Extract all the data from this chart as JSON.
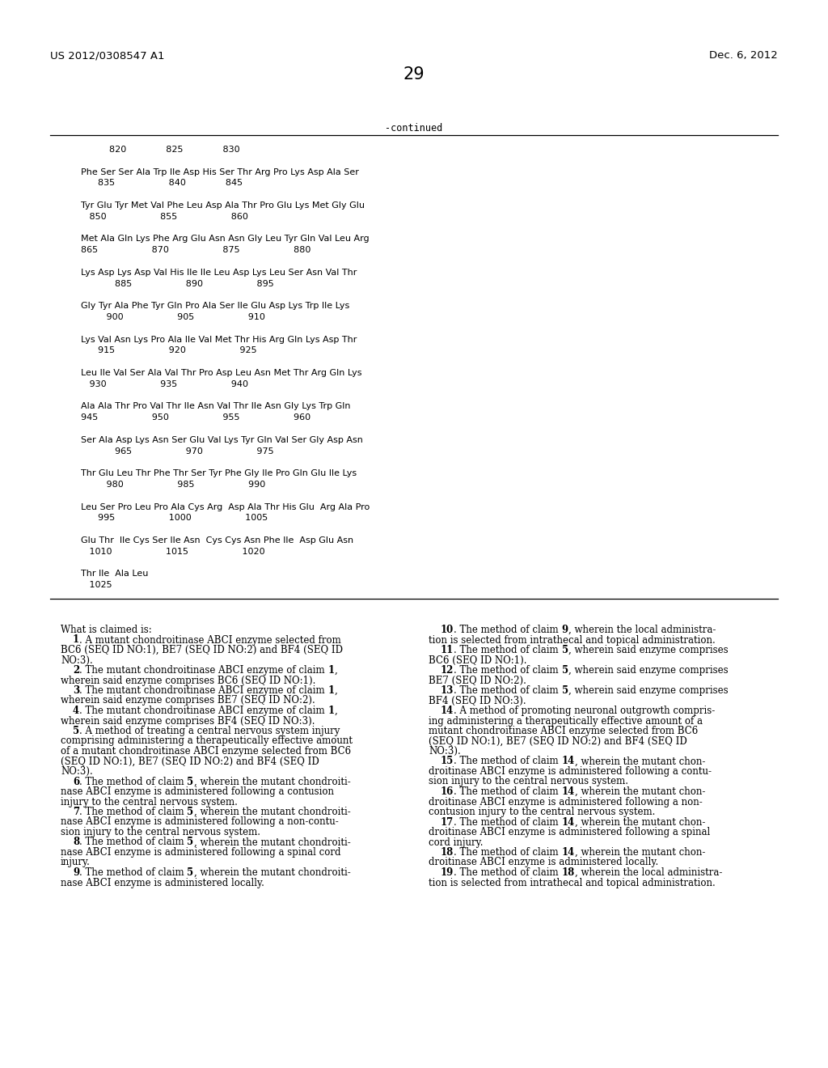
{
  "header_left": "US 2012/0308547 A1",
  "header_right": "Dec. 6, 2012",
  "page_number": "29",
  "continued_label": "-continued",
  "bg_color": "#ffffff",
  "text_color": "#000000",
  "header_fontsize": 9.5,
  "page_num_fontsize": 15,
  "seq_fontsize": 8.0,
  "claims_fontsize": 8.5,
  "seq_lines": [
    "          820              825              830",
    "",
    "Phe Ser Ser Ala Trp Ile Asp His Ser Thr Arg Pro Lys Asp Ala Ser",
    "      835                   840              845",
    "",
    "Tyr Glu Tyr Met Val Phe Leu Asp Ala Thr Pro Glu Lys Met Gly Glu",
    "   850                   855                   860",
    "",
    "Met Ala Gln Lys Phe Arg Glu Asn Asn Gly Leu Tyr Gln Val Leu Arg",
    "865                   870                   875                   880",
    "",
    "Lys Asp Lys Asp Val His Ile Ile Leu Asp Lys Leu Ser Asn Val Thr",
    "            885                   890                   895",
    "",
    "Gly Tyr Ala Phe Tyr Gln Pro Ala Ser Ile Glu Asp Lys Trp Ile Lys",
    "         900                   905                   910",
    "",
    "Lys Val Asn Lys Pro Ala Ile Val Met Thr His Arg Gln Lys Asp Thr",
    "      915                   920                   925",
    "",
    "Leu Ile Val Ser Ala Val Thr Pro Asp Leu Asn Met Thr Arg Gln Lys",
    "   930                   935                   940",
    "",
    "Ala Ala Thr Pro Val Thr Ile Asn Val Thr Ile Asn Gly Lys Trp Gln",
    "945                   950                   955                   960",
    "",
    "Ser Ala Asp Lys Asn Ser Glu Val Lys Tyr Gln Val Ser Gly Asp Asn",
    "            965                   970                   975",
    "",
    "Thr Glu Leu Thr Phe Thr Ser Tyr Phe Gly Ile Pro Gln Glu Ile Lys",
    "         980                   985                   990",
    "",
    "Leu Ser Pro Leu Pro Ala Cys Arg  Asp Ala Thr His Glu  Arg Ala Pro",
    "      995                   1000                   1005",
    "",
    "Glu Thr  Ile Cys Ser Ile Asn  Cys Cys Asn Phe Ile  Asp Glu Asn",
    "   1010                   1015                   1020",
    "",
    "Thr Ile  Ala Leu",
    "   1025"
  ],
  "left_claims_segments": [
    [
      [
        "What is claimed is:",
        "normal"
      ]
    ],
    [
      [
        "    ",
        "normal"
      ],
      [
        "1",
        "bold"
      ],
      [
        ". A mutant chondroitinase ABCI enzyme selected from",
        "normal"
      ]
    ],
    [
      [
        "BC6 (SEQ ID NO:1), BE7 (SEQ ID NO:2) and BF4 (SEQ ID",
        "normal"
      ]
    ],
    [
      [
        "NO:3).",
        "normal"
      ]
    ],
    [
      [
        "    ",
        "normal"
      ],
      [
        "2",
        "bold"
      ],
      [
        ". The mutant chondroitinase ABCI enzyme of claim ",
        "normal"
      ],
      [
        "1",
        "bold"
      ],
      [
        ",",
        "normal"
      ]
    ],
    [
      [
        "wherein said enzyme comprises BC6 (SEQ ID NO:1).",
        "normal"
      ]
    ],
    [
      [
        "    ",
        "normal"
      ],
      [
        "3",
        "bold"
      ],
      [
        ". The mutant chondroitinase ABCI enzyme of claim ",
        "normal"
      ],
      [
        "1",
        "bold"
      ],
      [
        ",",
        "normal"
      ]
    ],
    [
      [
        "wherein said enzyme comprises BE7 (SEQ ID NO:2).",
        "normal"
      ]
    ],
    [
      [
        "    ",
        "normal"
      ],
      [
        "4",
        "bold"
      ],
      [
        ". The mutant chondroitinase ABCI enzyme of claim ",
        "normal"
      ],
      [
        "1",
        "bold"
      ],
      [
        ",",
        "normal"
      ]
    ],
    [
      [
        "wherein said enzyme comprises BF4 (SEQ ID NO:3).",
        "normal"
      ]
    ],
    [
      [
        "    ",
        "normal"
      ],
      [
        "5",
        "bold"
      ],
      [
        ". A method of treating a central nervous system injury",
        "normal"
      ]
    ],
    [
      [
        "comprising administering a therapeutically effective amount",
        "normal"
      ]
    ],
    [
      [
        "of a mutant chondroitinase ABCI enzyme selected from BC6",
        "normal"
      ]
    ],
    [
      [
        "(SEQ ID NO:1), BE7 (SEQ ID NO:2) and BF4 (SEQ ID",
        "normal"
      ]
    ],
    [
      [
        "NO:3).",
        "normal"
      ]
    ],
    [
      [
        "    ",
        "normal"
      ],
      [
        "6",
        "bold"
      ],
      [
        ". The method of claim ",
        "normal"
      ],
      [
        "5",
        "bold"
      ],
      [
        ", wherein the mutant chondroiti-",
        "normal"
      ]
    ],
    [
      [
        "nase ABCI enzyme is administered following a contusion",
        "normal"
      ]
    ],
    [
      [
        "injury to the central nervous system.",
        "normal"
      ]
    ],
    [
      [
        "    ",
        "normal"
      ],
      [
        "7",
        "bold"
      ],
      [
        ". The method of claim ",
        "normal"
      ],
      [
        "5",
        "bold"
      ],
      [
        ", wherein the mutant chondroiti-",
        "normal"
      ]
    ],
    [
      [
        "nase ABCI enzyme is administered following a non-contu-",
        "normal"
      ]
    ],
    [
      [
        "sion injury to the central nervous system.",
        "normal"
      ]
    ],
    [
      [
        "    ",
        "normal"
      ],
      [
        "8",
        "bold"
      ],
      [
        ". The method of claim ",
        "normal"
      ],
      [
        "5",
        "bold"
      ],
      [
        ", wherein the mutant chondroiti-",
        "normal"
      ]
    ],
    [
      [
        "nase ABCI enzyme is administered following a spinal cord",
        "normal"
      ]
    ],
    [
      [
        "injury.",
        "normal"
      ]
    ],
    [
      [
        "    ",
        "normal"
      ],
      [
        "9",
        "bold"
      ],
      [
        ". The method of claim ",
        "normal"
      ],
      [
        "5",
        "bold"
      ],
      [
        ", wherein the mutant chondroiti-",
        "normal"
      ]
    ],
    [
      [
        "nase ABCI enzyme is administered locally.",
        "normal"
      ]
    ]
  ],
  "right_claims_segments": [
    [
      [
        "    ",
        "normal"
      ],
      [
        "10",
        "bold"
      ],
      [
        ". The method of claim ",
        "normal"
      ],
      [
        "9",
        "bold"
      ],
      [
        ", wherein the local administra-",
        "normal"
      ]
    ],
    [
      [
        "tion is selected from intrathecal and topical administration.",
        "normal"
      ]
    ],
    [
      [
        "    ",
        "normal"
      ],
      [
        "11",
        "bold"
      ],
      [
        ". The method of claim ",
        "normal"
      ],
      [
        "5",
        "bold"
      ],
      [
        ", wherein said enzyme comprises",
        "normal"
      ]
    ],
    [
      [
        "BC6 (SEQ ID NO:1).",
        "normal"
      ]
    ],
    [
      [
        "    ",
        "normal"
      ],
      [
        "12",
        "bold"
      ],
      [
        ". The method of claim ",
        "normal"
      ],
      [
        "5",
        "bold"
      ],
      [
        ", wherein said enzyme comprises",
        "normal"
      ]
    ],
    [
      [
        "BE7 (SEQ ID NO:2).",
        "normal"
      ]
    ],
    [
      [
        "    ",
        "normal"
      ],
      [
        "13",
        "bold"
      ],
      [
        ". The method of claim ",
        "normal"
      ],
      [
        "5",
        "bold"
      ],
      [
        ", wherein said enzyme comprises",
        "normal"
      ]
    ],
    [
      [
        "BF4 (SEQ ID NO:3).",
        "normal"
      ]
    ],
    [
      [
        "    ",
        "normal"
      ],
      [
        "14",
        "bold"
      ],
      [
        ". A method of promoting neuronal outgrowth compris-",
        "normal"
      ]
    ],
    [
      [
        "ing administering a therapeutically effective amount of a",
        "normal"
      ]
    ],
    [
      [
        "mutant chondroitinase ABCI enzyme selected from BC6",
        "normal"
      ]
    ],
    [
      [
        "(SEQ ID NO:1), BE7 (SEQ ID NO:2) and BF4 (SEQ ID",
        "normal"
      ]
    ],
    [
      [
        "NO:3).",
        "normal"
      ]
    ],
    [
      [
        "    ",
        "normal"
      ],
      [
        "15",
        "bold"
      ],
      [
        ". The method of claim ",
        "normal"
      ],
      [
        "14",
        "bold"
      ],
      [
        ", wherein the mutant chon-",
        "normal"
      ]
    ],
    [
      [
        "droitinase ABCI enzyme is administered following a contu-",
        "normal"
      ]
    ],
    [
      [
        "sion injury to the central nervous system.",
        "normal"
      ]
    ],
    [
      [
        "    ",
        "normal"
      ],
      [
        "16",
        "bold"
      ],
      [
        ". The method of claim ",
        "normal"
      ],
      [
        "14",
        "bold"
      ],
      [
        ", wherein the mutant chon-",
        "normal"
      ]
    ],
    [
      [
        "droitinase ABCI enzyme is administered following a non-",
        "normal"
      ]
    ],
    [
      [
        "contusion injury to the central nervous system.",
        "normal"
      ]
    ],
    [
      [
        "    ",
        "normal"
      ],
      [
        "17",
        "bold"
      ],
      [
        ". The method of claim ",
        "normal"
      ],
      [
        "14",
        "bold"
      ],
      [
        ", wherein the mutant chon-",
        "normal"
      ]
    ],
    [
      [
        "droitinase ABCI enzyme is administered following a spinal",
        "normal"
      ]
    ],
    [
      [
        "cord injury.",
        "normal"
      ]
    ],
    [
      [
        "    ",
        "normal"
      ],
      [
        "18",
        "bold"
      ],
      [
        ". The method of claim ",
        "normal"
      ],
      [
        "14",
        "bold"
      ],
      [
        ", wherein the mutant chon-",
        "normal"
      ]
    ],
    [
      [
        "droitinase ABCI enzyme is administered locally.",
        "normal"
      ]
    ],
    [
      [
        "    ",
        "normal"
      ],
      [
        "19",
        "bold"
      ],
      [
        ". The method of claim ",
        "normal"
      ],
      [
        "18",
        "bold"
      ],
      [
        ", wherein the local administra-",
        "normal"
      ]
    ],
    [
      [
        "tion is selected from intrathecal and topical administration.",
        "normal"
      ]
    ]
  ]
}
